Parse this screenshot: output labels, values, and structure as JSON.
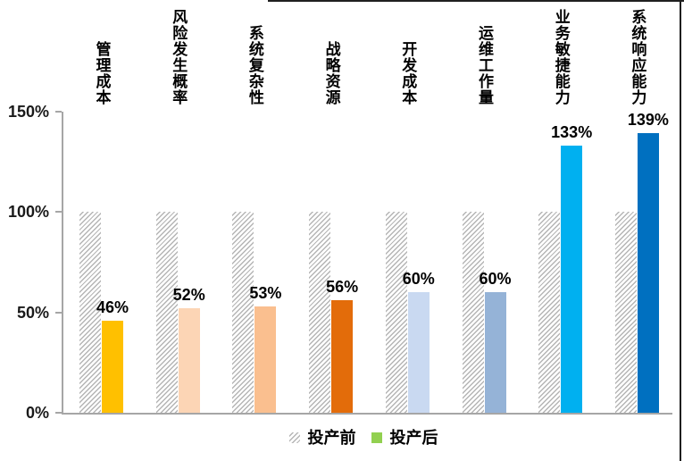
{
  "chart_data": {
    "type": "bar",
    "title": "",
    "categories": [
      "管理成本",
      "风险发生概率",
      "系统复杂性",
      "战略资源",
      "开发成本",
      "运维工作量",
      "业务敏捷能力",
      "系统响应能力"
    ],
    "series": [
      {
        "name": "投产前",
        "values": [
          100,
          100,
          100,
          100,
          100,
          100,
          100,
          100
        ],
        "style": "hatched"
      },
      {
        "name": "投产后",
        "values": [
          46,
          52,
          53,
          56,
          60,
          60,
          133,
          139
        ],
        "colors": [
          "#FFC000",
          "#FCD5B5",
          "#FABF8F",
          "#E36C0A",
          "#C9D9F1",
          "#95B3D7",
          "#00B0F0",
          "#0070C0"
        ]
      }
    ],
    "value_labels": [
      "46%",
      "52%",
      "53%",
      "56%",
      "60%",
      "60%",
      "133%",
      "139%"
    ],
    "yticks": [
      {
        "value": 0,
        "label": "0%"
      },
      {
        "value": 50,
        "label": "50%"
      },
      {
        "value": 100,
        "label": "100%"
      },
      {
        "value": 150,
        "label": "150%"
      }
    ],
    "ylim": [
      0,
      150
    ],
    "grid": false,
    "legend_position": "bottom"
  },
  "legend": {
    "before_swatch": "hatched-gray",
    "after_swatch_color": "#92D050"
  },
  "colors": {
    "axis": "#A6A6A6",
    "hatch_stripe": "#B5B5B5",
    "text": "#1A1A1A"
  }
}
